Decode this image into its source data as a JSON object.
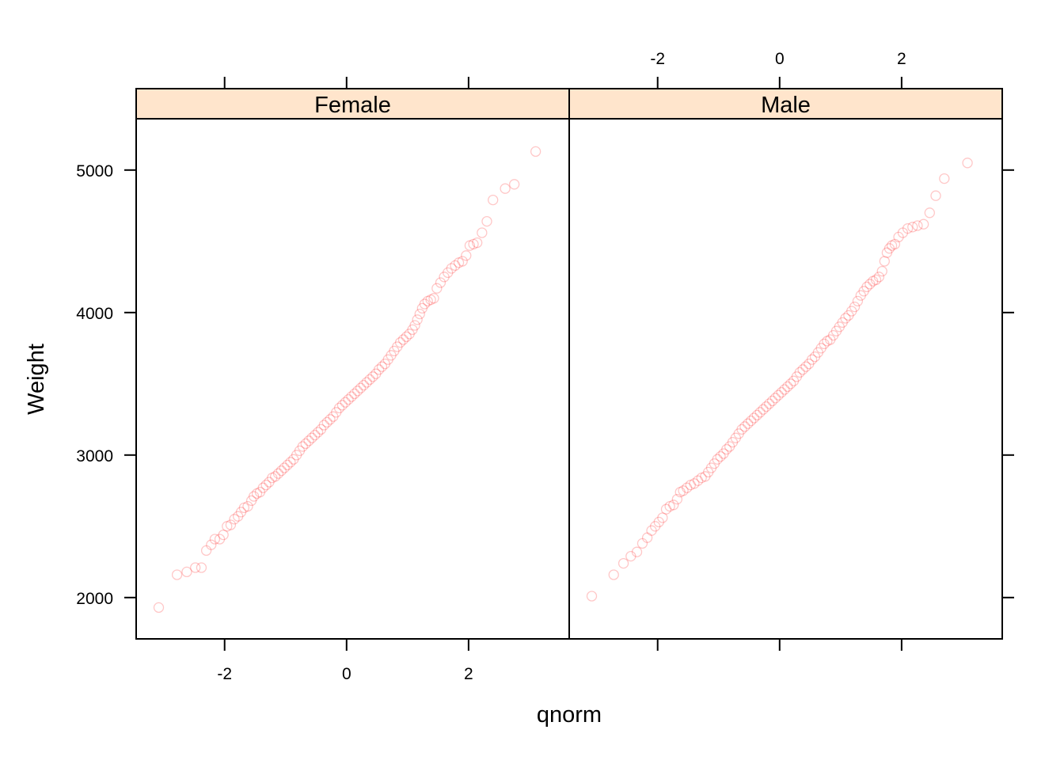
{
  "chart_data": {
    "type": "scatter",
    "xlabel": "qnorm",
    "ylabel": "Weight",
    "xlim": [
      -3.45,
      3.65
    ],
    "ylim": [
      1710,
      5360
    ],
    "xticks": [
      -2,
      0,
      2
    ],
    "xtick_labels": [
      "-2",
      "0",
      "2"
    ],
    "yticks": [
      2000,
      3000,
      4000,
      5000
    ],
    "ytick_labels": [
      "2000",
      "3000",
      "4000",
      "5000"
    ],
    "point_color": "#ff0000",
    "strip_color": "#ffe5cc",
    "grid": false,
    "legend": "none",
    "panels": [
      {
        "name": "Female",
        "points": [
          [
            -3.08,
            1930
          ],
          [
            -2.78,
            2160
          ],
          [
            -2.62,
            2180
          ],
          [
            -2.48,
            2210
          ],
          [
            -2.38,
            2210
          ],
          [
            -2.3,
            2330
          ],
          [
            -2.22,
            2370
          ],
          [
            -2.16,
            2410
          ],
          [
            -2.08,
            2410
          ],
          [
            -2.02,
            2440
          ],
          [
            -1.96,
            2500
          ],
          [
            -1.9,
            2510
          ],
          [
            -1.84,
            2550
          ],
          [
            -1.78,
            2570
          ],
          [
            -1.73,
            2600
          ],
          [
            -1.68,
            2630
          ],
          [
            -1.62,
            2640
          ],
          [
            -1.56,
            2680
          ],
          [
            -1.52,
            2710
          ],
          [
            -1.47,
            2730
          ],
          [
            -1.42,
            2740
          ],
          [
            -1.37,
            2770
          ],
          [
            -1.32,
            2790
          ],
          [
            -1.27,
            2810
          ],
          [
            -1.22,
            2840
          ],
          [
            -1.17,
            2850
          ],
          [
            -1.12,
            2870
          ],
          [
            -1.07,
            2890
          ],
          [
            -1.02,
            2910
          ],
          [
            -0.97,
            2930
          ],
          [
            -0.92,
            2950
          ],
          [
            -0.87,
            2970
          ],
          [
            -0.82,
            3000
          ],
          [
            -0.77,
            3030
          ],
          [
            -0.72,
            3060
          ],
          [
            -0.67,
            3080
          ],
          [
            -0.62,
            3100
          ],
          [
            -0.57,
            3120
          ],
          [
            -0.52,
            3140
          ],
          [
            -0.47,
            3160
          ],
          [
            -0.42,
            3180
          ],
          [
            -0.37,
            3210
          ],
          [
            -0.32,
            3230
          ],
          [
            -0.27,
            3250
          ],
          [
            -0.22,
            3270
          ],
          [
            -0.17,
            3300
          ],
          [
            -0.12,
            3330
          ],
          [
            -0.07,
            3350
          ],
          [
            -0.02,
            3370
          ],
          [
            0.03,
            3390
          ],
          [
            0.08,
            3410
          ],
          [
            0.13,
            3430
          ],
          [
            0.18,
            3450
          ],
          [
            0.23,
            3470
          ],
          [
            0.28,
            3490
          ],
          [
            0.33,
            3510
          ],
          [
            0.38,
            3530
          ],
          [
            0.43,
            3550
          ],
          [
            0.48,
            3570
          ],
          [
            0.53,
            3600
          ],
          [
            0.58,
            3620
          ],
          [
            0.63,
            3640
          ],
          [
            0.68,
            3670
          ],
          [
            0.73,
            3700
          ],
          [
            0.78,
            3730
          ],
          [
            0.83,
            3760
          ],
          [
            0.88,
            3790
          ],
          [
            0.93,
            3810
          ],
          [
            0.98,
            3830
          ],
          [
            1.03,
            3850
          ],
          [
            1.08,
            3880
          ],
          [
            1.12,
            3910
          ],
          [
            1.16,
            3950
          ],
          [
            1.2,
            3990
          ],
          [
            1.24,
            4030
          ],
          [
            1.28,
            4060
          ],
          [
            1.33,
            4080
          ],
          [
            1.38,
            4090
          ],
          [
            1.43,
            4100
          ],
          [
            1.48,
            4170
          ],
          [
            1.54,
            4210
          ],
          [
            1.6,
            4250
          ],
          [
            1.66,
            4280
          ],
          [
            1.72,
            4310
          ],
          [
            1.78,
            4330
          ],
          [
            1.84,
            4350
          ],
          [
            1.9,
            4360
          ],
          [
            1.96,
            4400
          ],
          [
            2.02,
            4470
          ],
          [
            2.08,
            4480
          ],
          [
            2.14,
            4490
          ],
          [
            2.22,
            4560
          ],
          [
            2.3,
            4640
          ],
          [
            2.4,
            4790
          ],
          [
            2.6,
            4870
          ],
          [
            2.75,
            4900
          ],
          [
            3.1,
            5130
          ]
        ]
      },
      {
        "name": "Male",
        "points": [
          [
            -3.08,
            2010
          ],
          [
            -2.72,
            2160
          ],
          [
            -2.56,
            2240
          ],
          [
            -2.44,
            2290
          ],
          [
            -2.34,
            2320
          ],
          [
            -2.25,
            2380
          ],
          [
            -2.17,
            2420
          ],
          [
            -2.1,
            2470
          ],
          [
            -2.04,
            2500
          ],
          [
            -1.98,
            2530
          ],
          [
            -1.92,
            2560
          ],
          [
            -1.86,
            2620
          ],
          [
            -1.8,
            2640
          ],
          [
            -1.74,
            2650
          ],
          [
            -1.68,
            2690
          ],
          [
            -1.63,
            2740
          ],
          [
            -1.58,
            2750
          ],
          [
            -1.52,
            2770
          ],
          [
            -1.46,
            2790
          ],
          [
            -1.4,
            2800
          ],
          [
            -1.34,
            2820
          ],
          [
            -1.28,
            2840
          ],
          [
            -1.22,
            2850
          ],
          [
            -1.17,
            2880
          ],
          [
            -1.12,
            2910
          ],
          [
            -1.07,
            2940
          ],
          [
            -1.02,
            2970
          ],
          [
            -0.97,
            2990
          ],
          [
            -0.92,
            3010
          ],
          [
            -0.87,
            3040
          ],
          [
            -0.82,
            3060
          ],
          [
            -0.77,
            3090
          ],
          [
            -0.72,
            3120
          ],
          [
            -0.67,
            3150
          ],
          [
            -0.62,
            3180
          ],
          [
            -0.57,
            3200
          ],
          [
            -0.52,
            3220
          ],
          [
            -0.47,
            3240
          ],
          [
            -0.42,
            3260
          ],
          [
            -0.37,
            3280
          ],
          [
            -0.32,
            3300
          ],
          [
            -0.27,
            3320
          ],
          [
            -0.22,
            3340
          ],
          [
            -0.17,
            3360
          ],
          [
            -0.12,
            3380
          ],
          [
            -0.07,
            3400
          ],
          [
            -0.02,
            3420
          ],
          [
            0.03,
            3440
          ],
          [
            0.08,
            3460
          ],
          [
            0.13,
            3480
          ],
          [
            0.18,
            3500
          ],
          [
            0.23,
            3520
          ],
          [
            0.28,
            3550
          ],
          [
            0.33,
            3580
          ],
          [
            0.38,
            3600
          ],
          [
            0.43,
            3620
          ],
          [
            0.48,
            3640
          ],
          [
            0.53,
            3670
          ],
          [
            0.58,
            3690
          ],
          [
            0.63,
            3720
          ],
          [
            0.68,
            3750
          ],
          [
            0.73,
            3780
          ],
          [
            0.78,
            3800
          ],
          [
            0.83,
            3810
          ],
          [
            0.88,
            3840
          ],
          [
            0.93,
            3870
          ],
          [
            0.98,
            3900
          ],
          [
            1.03,
            3930
          ],
          [
            1.08,
            3960
          ],
          [
            1.13,
            3980
          ],
          [
            1.18,
            4010
          ],
          [
            1.23,
            4040
          ],
          [
            1.28,
            4080
          ],
          [
            1.33,
            4120
          ],
          [
            1.38,
            4150
          ],
          [
            1.43,
            4180
          ],
          [
            1.48,
            4200
          ],
          [
            1.53,
            4220
          ],
          [
            1.58,
            4230
          ],
          [
            1.63,
            4250
          ],
          [
            1.68,
            4290
          ],
          [
            1.72,
            4360
          ],
          [
            1.76,
            4420
          ],
          [
            1.8,
            4450
          ],
          [
            1.84,
            4470
          ],
          [
            1.89,
            4480
          ],
          [
            1.95,
            4530
          ],
          [
            2.02,
            4560
          ],
          [
            2.1,
            4590
          ],
          [
            2.18,
            4600
          ],
          [
            2.26,
            4610
          ],
          [
            2.36,
            4620
          ],
          [
            2.46,
            4700
          ],
          [
            2.56,
            4820
          ],
          [
            2.7,
            4940
          ],
          [
            3.08,
            5050
          ]
        ]
      }
    ]
  }
}
